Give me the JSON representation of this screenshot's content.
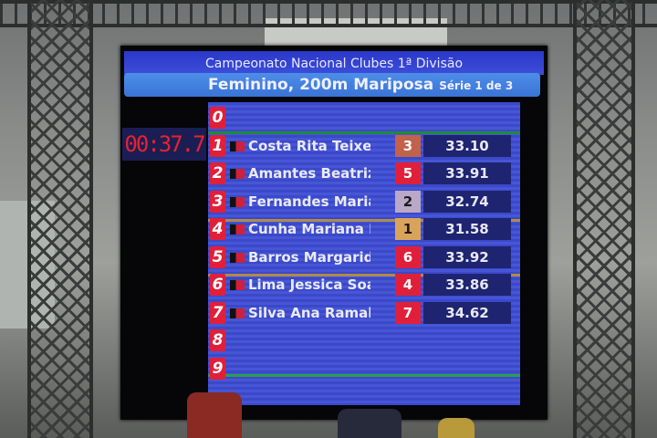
{
  "scoreboard": {
    "competition": "Campeonato Nacional Clubes 1ª Divisão",
    "event": "Feminino,  200m Mariposa",
    "heat": "Série 1 de 3",
    "clock": "00:37.7",
    "colors": {
      "gold": "#d9a45a",
      "silver": "#b9a8c6",
      "bronze": "#c2624a",
      "other": "#e0203a",
      "lane_bg": "#4050d0"
    },
    "rows": [
      {
        "lane": "0",
        "name": "",
        "place": "",
        "time": ""
      },
      {
        "lane": "1",
        "name": "Costa Rita Teixeira",
        "place": "3",
        "time": "33.10"
      },
      {
        "lane": "2",
        "name": "Amantes Beatriz Q",
        "place": "5",
        "time": "33.91"
      },
      {
        "lane": "3",
        "name": "Fernandes Maria M",
        "place": "2",
        "time": "32.74"
      },
      {
        "lane": "4",
        "name": "Cunha Mariana Pach",
        "place": "1",
        "time": "31.58"
      },
      {
        "lane": "5",
        "name": "Barros Margarida",
        "place": "6",
        "time": "33.92"
      },
      {
        "lane": "6",
        "name": "Lima Jessica Soar",
        "place": "4",
        "time": "33.86"
      },
      {
        "lane": "7",
        "name": "Silva Ana Ramalh",
        "place": "7",
        "time": "34.62"
      },
      {
        "lane": "8",
        "name": "",
        "place": "",
        "time": ""
      },
      {
        "lane": "9",
        "name": "",
        "place": "",
        "time": ""
      }
    ]
  }
}
